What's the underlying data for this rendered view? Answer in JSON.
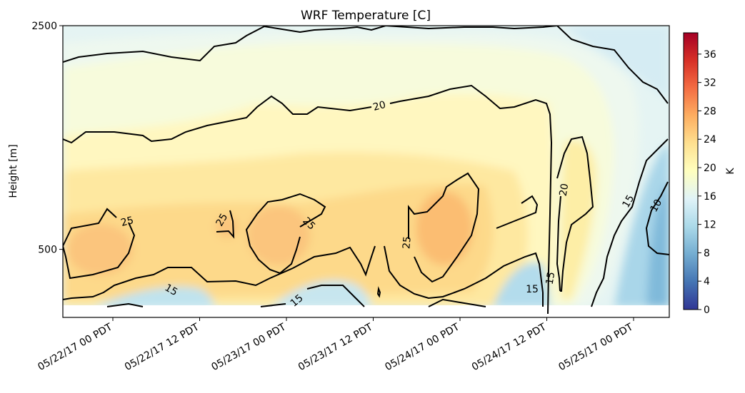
{
  "chart_data": {
    "type": "heatmap",
    "title": "WRF Temperature [C]",
    "xlabel": "",
    "ylabel": "Height [m]",
    "x_tick_labels": [
      "05/22/17 00 PDT",
      "05/22/17 12 PDT",
      "05/23/17 00 PDT",
      "05/23/17 12 PDT",
      "05/24/17 00 PDT",
      "05/24/17 12 PDT",
      "05/25/17 00 PDT"
    ],
    "y_tick_labels": [
      "500",
      "2500"
    ],
    "y_ticks": [
      500,
      2500
    ],
    "ylim": [
      0,
      2500
    ],
    "colorbar": {
      "label": "K",
      "min": 0,
      "max": 39,
      "ticks": [
        0,
        4,
        8,
        12,
        16,
        20,
        24,
        28,
        32,
        36
      ],
      "colormap": "RdYlBu_r",
      "colors": [
        "#313695",
        "#4575b4",
        "#74add1",
        "#abd9e9",
        "#e0f3f8",
        "#ffffbf",
        "#fee090",
        "#fdae61",
        "#f46d43",
        "#d73027",
        "#a50026"
      ]
    },
    "contour_levels": [
      10,
      15,
      20,
      25
    ],
    "contour_labels": [
      "25",
      "25",
      "25",
      "25",
      "20",
      "20",
      "15",
      "15",
      "15",
      "15",
      "15",
      "10"
    ]
  }
}
